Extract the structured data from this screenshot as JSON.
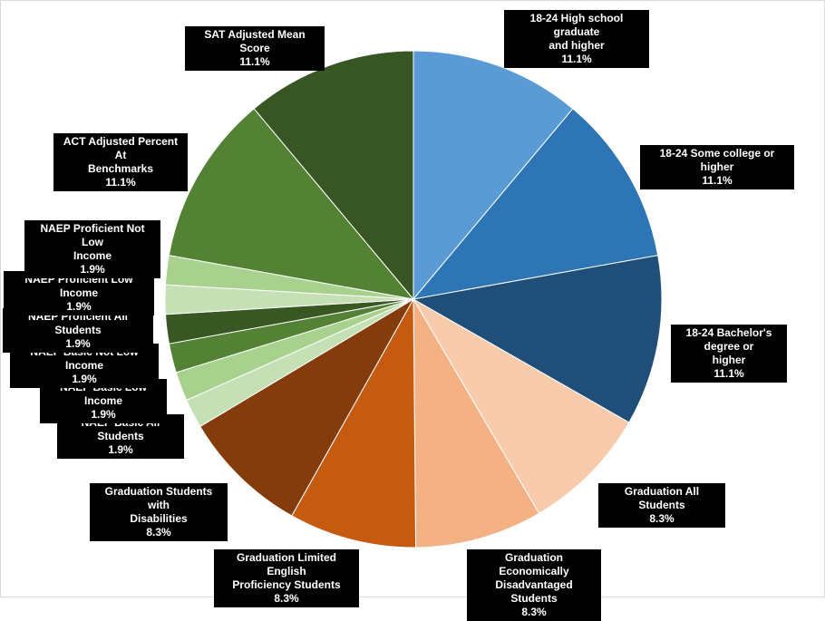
{
  "chart_data": {
    "type": "pie",
    "title": "",
    "slices": [
      {
        "label": "18-24 High school graduate and higher",
        "value": 11.1,
        "percent_label": "11.1%",
        "color": "#5b9bd5"
      },
      {
        "label": "18-24 Some college or higher",
        "value": 11.1,
        "percent_label": "11.1%",
        "color": "#2e75b6"
      },
      {
        "label": "18-24 Bachelor's degree or higher",
        "value": 11.1,
        "percent_label": "11.1%",
        "color": "#1f4e79"
      },
      {
        "label": "Graduation All Students",
        "value": 8.3,
        "percent_label": "8.3%",
        "color": "#f8cbad"
      },
      {
        "label": "Graduation Economically Disadvantaged Students",
        "value": 8.3,
        "percent_label": "8.3%",
        "color": "#f4b183"
      },
      {
        "label": "Graduation Limited English Proficiency Students",
        "value": 8.3,
        "percent_label": "8.3%",
        "color": "#c55a11"
      },
      {
        "label": "Graduation Students with Disabilities",
        "value": 8.3,
        "percent_label": "8.3%",
        "color": "#843c0c"
      },
      {
        "label": "NAEP Basic All Students",
        "value": 1.9,
        "percent_label": "1.9%",
        "color": "#c5e0b4"
      },
      {
        "label": "NAEP Basic Low Income",
        "value": 1.9,
        "percent_label": "1.9%",
        "color": "#a9d18e"
      },
      {
        "label": "NAEP Basic Not Low Income",
        "value": 1.9,
        "percent_label": "1.9%",
        "color": "#548235"
      },
      {
        "label": "NAEP Proficient All Students",
        "value": 1.9,
        "percent_label": "1.9%",
        "color": "#385723"
      },
      {
        "label": "NAEP Proficient Low Income",
        "value": 1.9,
        "percent_label": "1.9%",
        "color": "#c5e0b4"
      },
      {
        "label": "NAEP Proficient Not Low Income",
        "value": 1.9,
        "percent_label": "1.9%",
        "color": "#a9d18e"
      },
      {
        "label": "ACT Adjusted Percent At Benchmarks",
        "value": 11.1,
        "percent_label": "11.1%",
        "color": "#548235"
      },
      {
        "label": "SAT Adjusted Mean Score",
        "value": 11.1,
        "percent_label": "11.1%",
        "color": "#375623"
      }
    ],
    "labels": {
      "text_color": "#ffffff",
      "background": "#000000"
    },
    "legend": "none"
  }
}
